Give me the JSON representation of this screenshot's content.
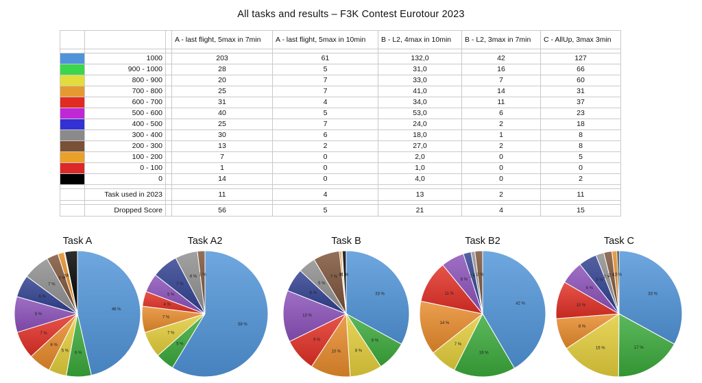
{
  "title": "All tasks and results – F3K Contest Eurotour 2023",
  "table": {
    "columns": [
      "A - last flight, 5max in 7min",
      "A - last flight, 5max in 10min",
      "B - L2, 4max in 10min",
      "B - L2, 3max in 7min",
      "C - AllUp, 3max 3min"
    ],
    "rows": [
      {
        "label": "1000",
        "color": "#4f94d8",
        "values": [
          "203",
          "61",
          "132,0",
          "42",
          "127"
        ]
      },
      {
        "label": "900 - 1000",
        "color": "#3cd64c",
        "values": [
          "28",
          "5",
          "31,0",
          "16",
          "66"
        ]
      },
      {
        "label": "800 - 900",
        "color": "#e2dd3c",
        "values": [
          "20",
          "7",
          "33,0",
          "7",
          "60"
        ]
      },
      {
        "label": "700 - 800",
        "color": "#e59a30",
        "values": [
          "25",
          "7",
          "41,0",
          "14",
          "31"
        ]
      },
      {
        "label": "600 - 700",
        "color": "#e02a22",
        "values": [
          "31",
          "4",
          "34,0",
          "11",
          "37"
        ]
      },
      {
        "label": "500 - 600",
        "color": "#c028d6",
        "values": [
          "40",
          "5",
          "53,0",
          "6",
          "23"
        ]
      },
      {
        "label": "400 - 500",
        "color": "#3330d4",
        "values": [
          "25",
          "7",
          "24,0",
          "2",
          "18"
        ]
      },
      {
        "label": "300 - 400",
        "color": "#8a8a8a",
        "values": [
          "30",
          "6",
          "18,0",
          "1",
          "8"
        ]
      },
      {
        "label": "200 - 300",
        "color": "#7a5036",
        "values": [
          "13",
          "2",
          "27,0",
          "2",
          "8"
        ]
      },
      {
        "label": "100 - 200",
        "color": "#eaa12a",
        "values": [
          "7",
          "0",
          "2,0",
          "0",
          "5"
        ]
      },
      {
        "label": "0 - 100",
        "color": "#dc2828",
        "values": [
          "1",
          "0",
          "1,0",
          "0",
          "0"
        ]
      },
      {
        "label": "0",
        "color": "#000000",
        "values": [
          "14",
          "0",
          "4,0",
          "0",
          "2"
        ]
      }
    ],
    "summary": [
      {
        "label": "Task used in 2023",
        "values": [
          "11",
          "4",
          "13",
          "2",
          "11"
        ]
      },
      {
        "label": "Dropped Score",
        "values": [
          "56",
          "5",
          "21",
          "4",
          "15"
        ]
      }
    ]
  },
  "chart_data": [
    {
      "type": "pie",
      "title": "Task A",
      "labels": [
        "1000",
        "900 - 1000",
        "800 - 900",
        "700 - 800",
        "600 - 700",
        "500 - 600",
        "400 - 500",
        "300 - 400",
        "200 - 300",
        "100 - 200",
        "0 - 100",
        "0"
      ],
      "values": [
        203,
        28,
        20,
        25,
        31,
        40,
        25,
        30,
        13,
        7,
        1,
        14
      ],
      "pct_labels": [
        "46 %",
        "6 %",
        "5 %",
        "6 %",
        "7 %",
        "9 %",
        "6 %",
        "7 %",
        "3 %",
        "2 %",
        "0 %",
        "3 %"
      ]
    },
    {
      "type": "pie",
      "title": "Task A2",
      "labels": [
        "1000",
        "900 - 1000",
        "800 - 900",
        "700 - 800",
        "600 - 700",
        "500 - 600",
        "400 - 500",
        "300 - 400",
        "200 - 300",
        "100 - 200",
        "0 - 100",
        "0"
      ],
      "values": [
        61,
        5,
        7,
        7,
        4,
        5,
        7,
        6,
        2,
        0,
        0,
        0
      ],
      "pct_labels": [
        "59 %",
        "5 %",
        "7 %",
        "7 %",
        "4 %",
        "5 %",
        "7 %",
        "6 %",
        "2 %",
        "",
        "",
        ""
      ]
    },
    {
      "type": "pie",
      "title": "Task B",
      "labels": [
        "1000",
        "900 - 1000",
        "800 - 900",
        "700 - 800",
        "600 - 700",
        "500 - 600",
        "400 - 500",
        "300 - 400",
        "200 - 300",
        "100 - 200",
        "0 - 100",
        "0"
      ],
      "values": [
        132,
        31,
        33,
        41,
        34,
        53,
        24,
        18,
        27,
        2,
        1,
        4
      ],
      "pct_labels": [
        "33 %",
        "8 %",
        "8 %",
        "10 %",
        "9 %",
        "13 %",
        "6 %",
        "5 %",
        "7 %",
        "0 %",
        "0 %",
        "1 %"
      ]
    },
    {
      "type": "pie",
      "title": "Task B2",
      "labels": [
        "1000",
        "900 - 1000",
        "800 - 900",
        "700 - 800",
        "600 - 700",
        "500 - 600",
        "400 - 500",
        "300 - 400",
        "200 - 300",
        "100 - 200",
        "0 - 100",
        "0"
      ],
      "values": [
        42,
        16,
        7,
        14,
        11,
        6,
        2,
        1,
        2,
        0,
        0,
        0
      ],
      "pct_labels": [
        "42 %",
        "16 %",
        "7 %",
        "14 %",
        "11 %",
        "6 %",
        "2 %",
        "1 %",
        "2 %",
        "",
        "",
        ""
      ]
    },
    {
      "type": "pie",
      "title": "Task C",
      "labels": [
        "1000",
        "900 - 1000",
        "800 - 900",
        "700 - 800",
        "600 - 700",
        "500 - 600",
        "400 - 500",
        "300 - 400",
        "200 - 300",
        "100 - 200",
        "0 - 100",
        "0"
      ],
      "values": [
        127,
        66,
        60,
        31,
        37,
        23,
        18,
        8,
        8,
        5,
        0,
        2
      ],
      "pct_labels": [
        "33 %",
        "17 %",
        "16 %",
        "8 %",
        "10 %",
        "6 %",
        "5 %",
        "2 %",
        "2 %",
        "1 %",
        "",
        "1 %"
      ]
    }
  ],
  "pie_colors": [
    "#4f94d8",
    "#3aa83a",
    "#e2cc3a",
    "#e68a2a",
    "#e02f24",
    "#8a4fb8",
    "#2f3f8f",
    "#8e8e8e",
    "#7a5036",
    "#e08a22",
    "#e03a2a",
    "#000000"
  ]
}
